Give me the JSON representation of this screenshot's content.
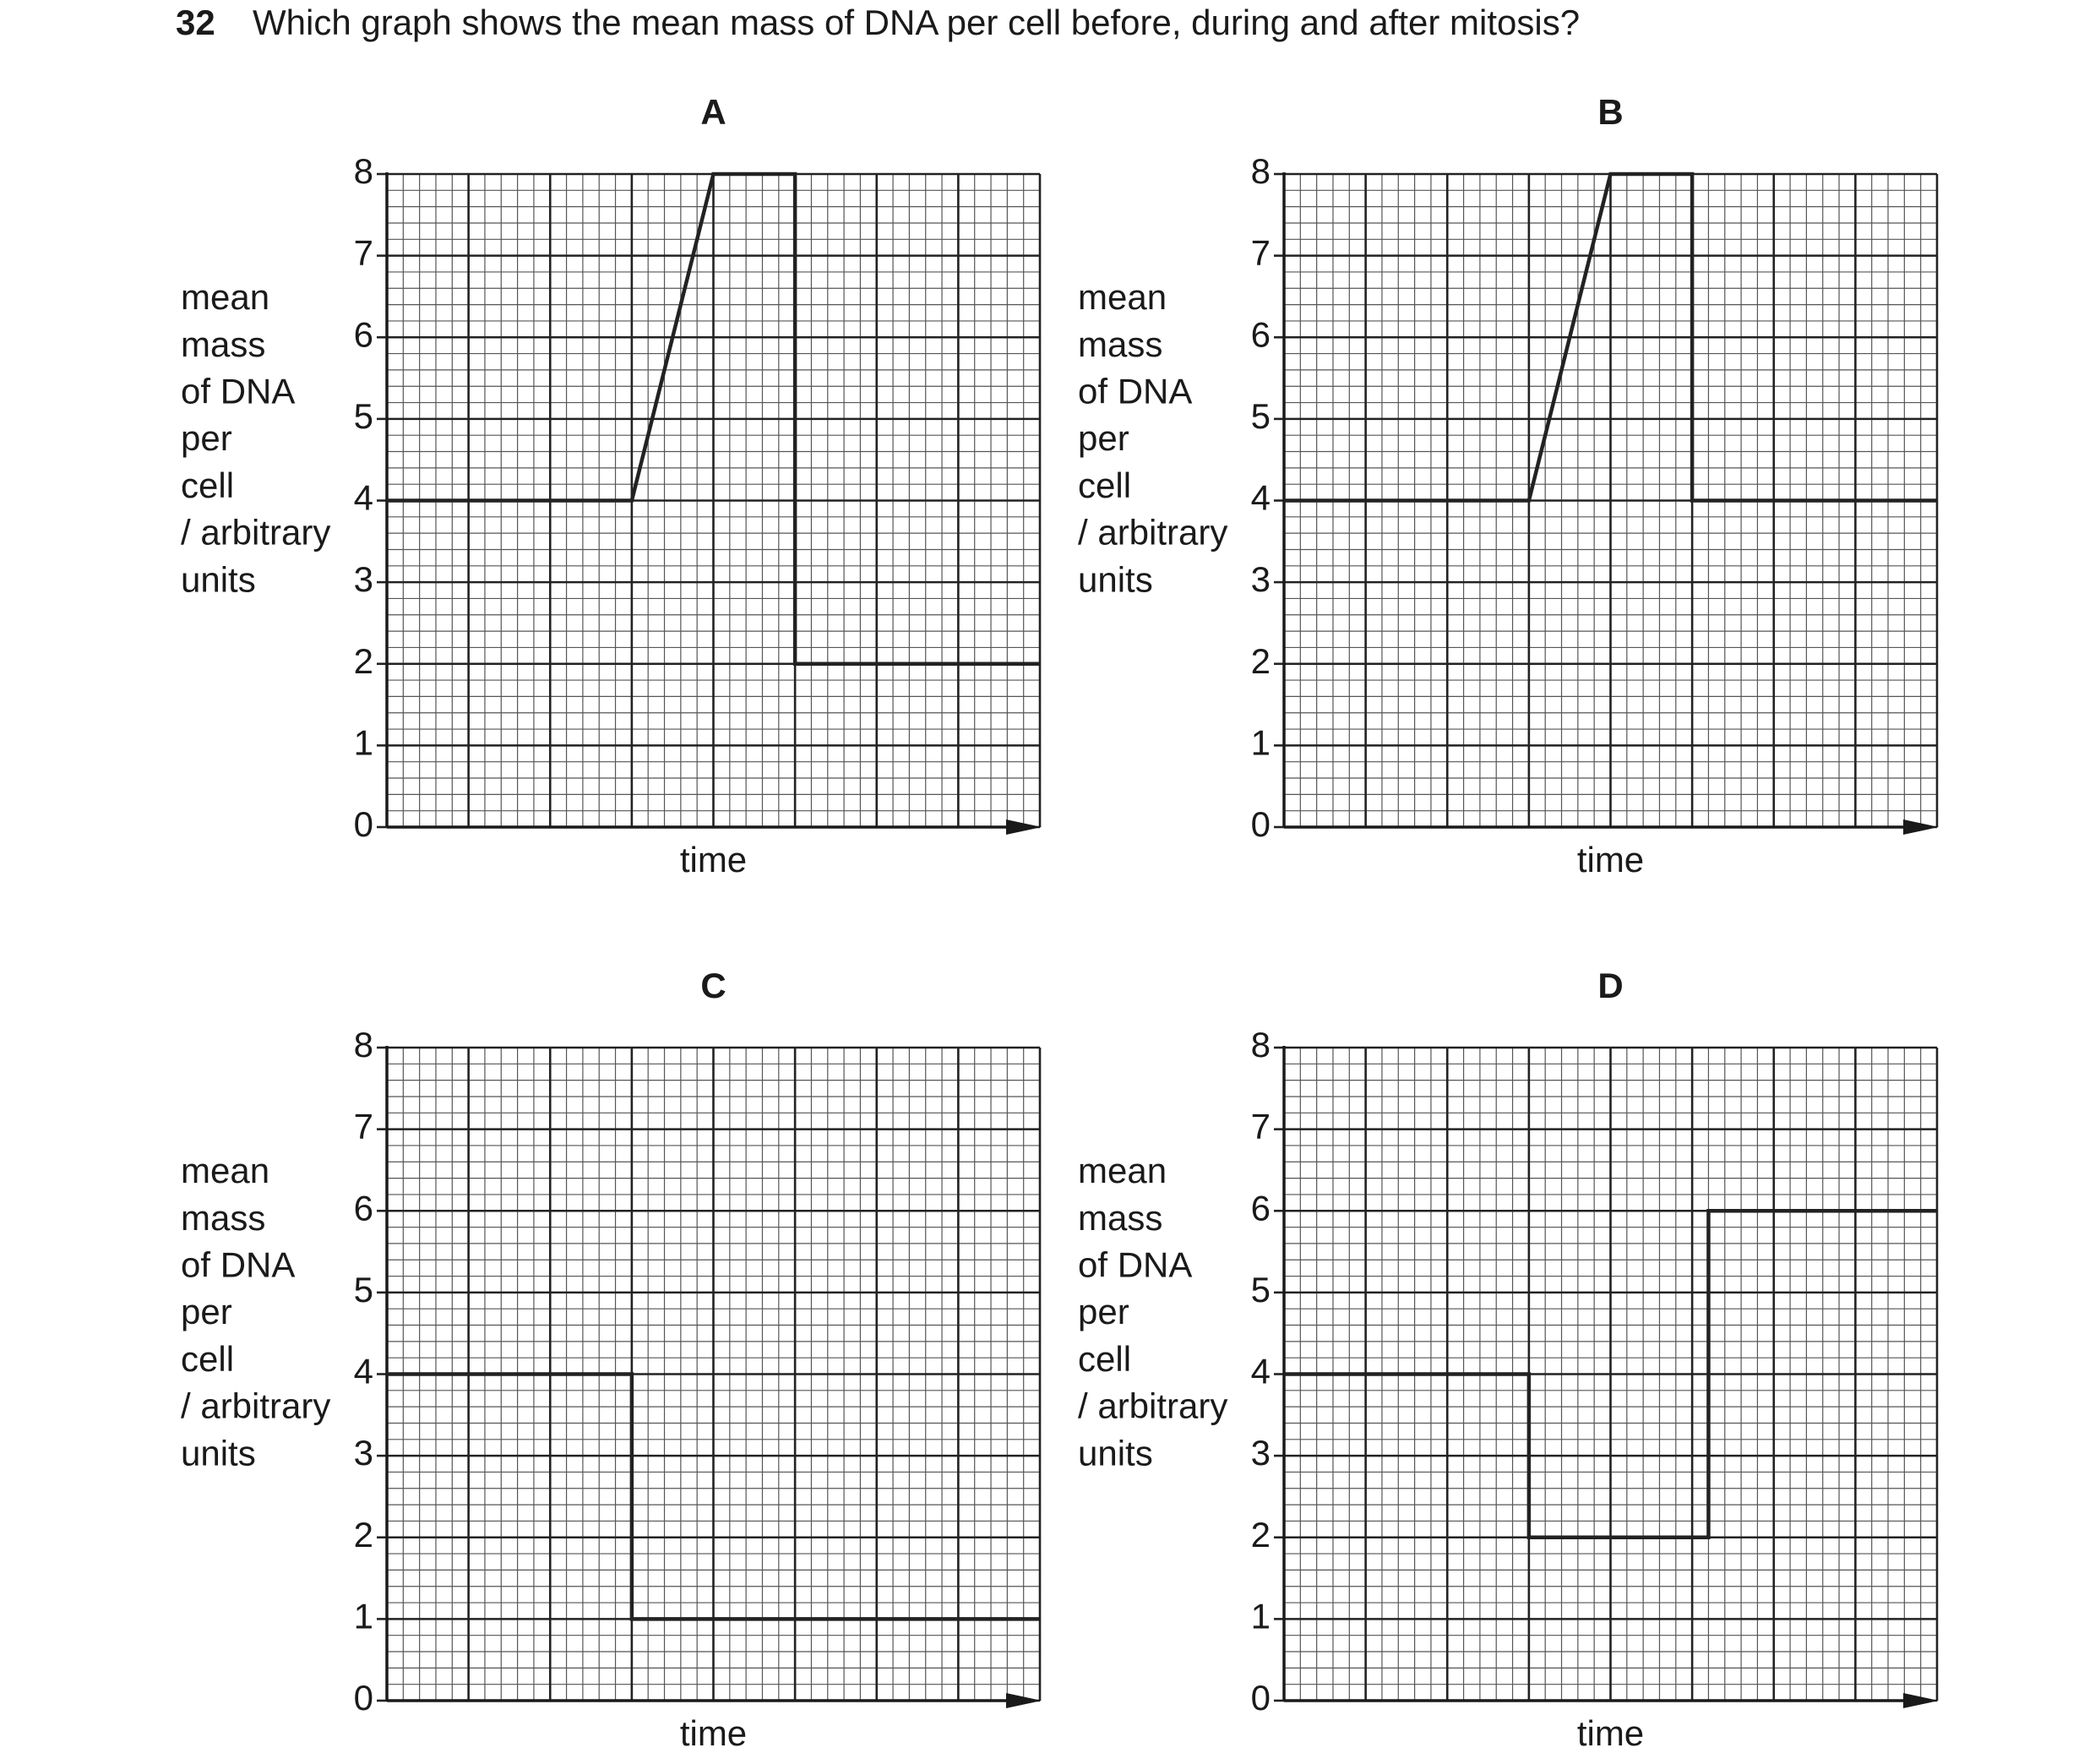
{
  "question": {
    "number": "32",
    "text": "Which graph shows the mean mass of DNA per cell before, during and after mitosis?"
  },
  "chart_data": [
    {
      "type": "line",
      "title": "A",
      "ylabel": [
        "mean",
        "mass",
        "of DNA",
        "per",
        "cell",
        "/ arbitrary",
        "units"
      ],
      "xlabel": "time",
      "x": [
        0,
        3,
        4,
        5,
        5,
        8
      ],
      "values": [
        4,
        4,
        8,
        8,
        2,
        2
      ],
      "color": "#222222",
      "xlim": [
        0,
        8
      ],
      "ylim": [
        0,
        8
      ],
      "yticks": [
        0,
        1,
        2,
        3,
        4,
        5,
        6,
        7,
        8
      ],
      "grid": true,
      "minor_divisions": 5
    },
    {
      "type": "line",
      "title": "B",
      "ylabel": [
        "mean",
        "mass",
        "of DNA",
        "per",
        "cell",
        "/ arbitrary",
        "units"
      ],
      "xlabel": "time",
      "x": [
        0,
        3,
        4,
        5,
        5,
        8
      ],
      "values": [
        4,
        4,
        8,
        8,
        4,
        4
      ],
      "color": "#222222",
      "xlim": [
        0,
        8
      ],
      "ylim": [
        0,
        8
      ],
      "yticks": [
        0,
        1,
        2,
        3,
        4,
        5,
        6,
        7,
        8
      ],
      "grid": true,
      "minor_divisions": 5
    },
    {
      "type": "line",
      "title": "C",
      "ylabel": [
        "mean",
        "mass",
        "of DNA",
        "per",
        "cell",
        "/ arbitrary",
        "units"
      ],
      "xlabel": "time",
      "x": [
        0,
        3,
        3,
        8
      ],
      "values": [
        4,
        4,
        1,
        1
      ],
      "color": "#222222",
      "xlim": [
        0,
        8
      ],
      "ylim": [
        0,
        8
      ],
      "yticks": [
        0,
        1,
        2,
        3,
        4,
        5,
        6,
        7,
        8
      ],
      "grid": true,
      "minor_divisions": 5
    },
    {
      "type": "line",
      "title": "D",
      "ylabel": [
        "mean",
        "mass",
        "of DNA",
        "per",
        "cell",
        "/ arbitrary",
        "units"
      ],
      "xlabel": "time",
      "x": [
        0,
        3,
        3,
        5.2,
        5.2,
        8
      ],
      "values": [
        4,
        4,
        2,
        2,
        6,
        6
      ],
      "color": "#222222",
      "xlim": [
        0,
        8
      ],
      "ylim": [
        0,
        8
      ],
      "yticks": [
        0,
        1,
        2,
        3,
        4,
        5,
        6,
        7,
        8
      ],
      "grid": true,
      "minor_divisions": 5
    }
  ]
}
